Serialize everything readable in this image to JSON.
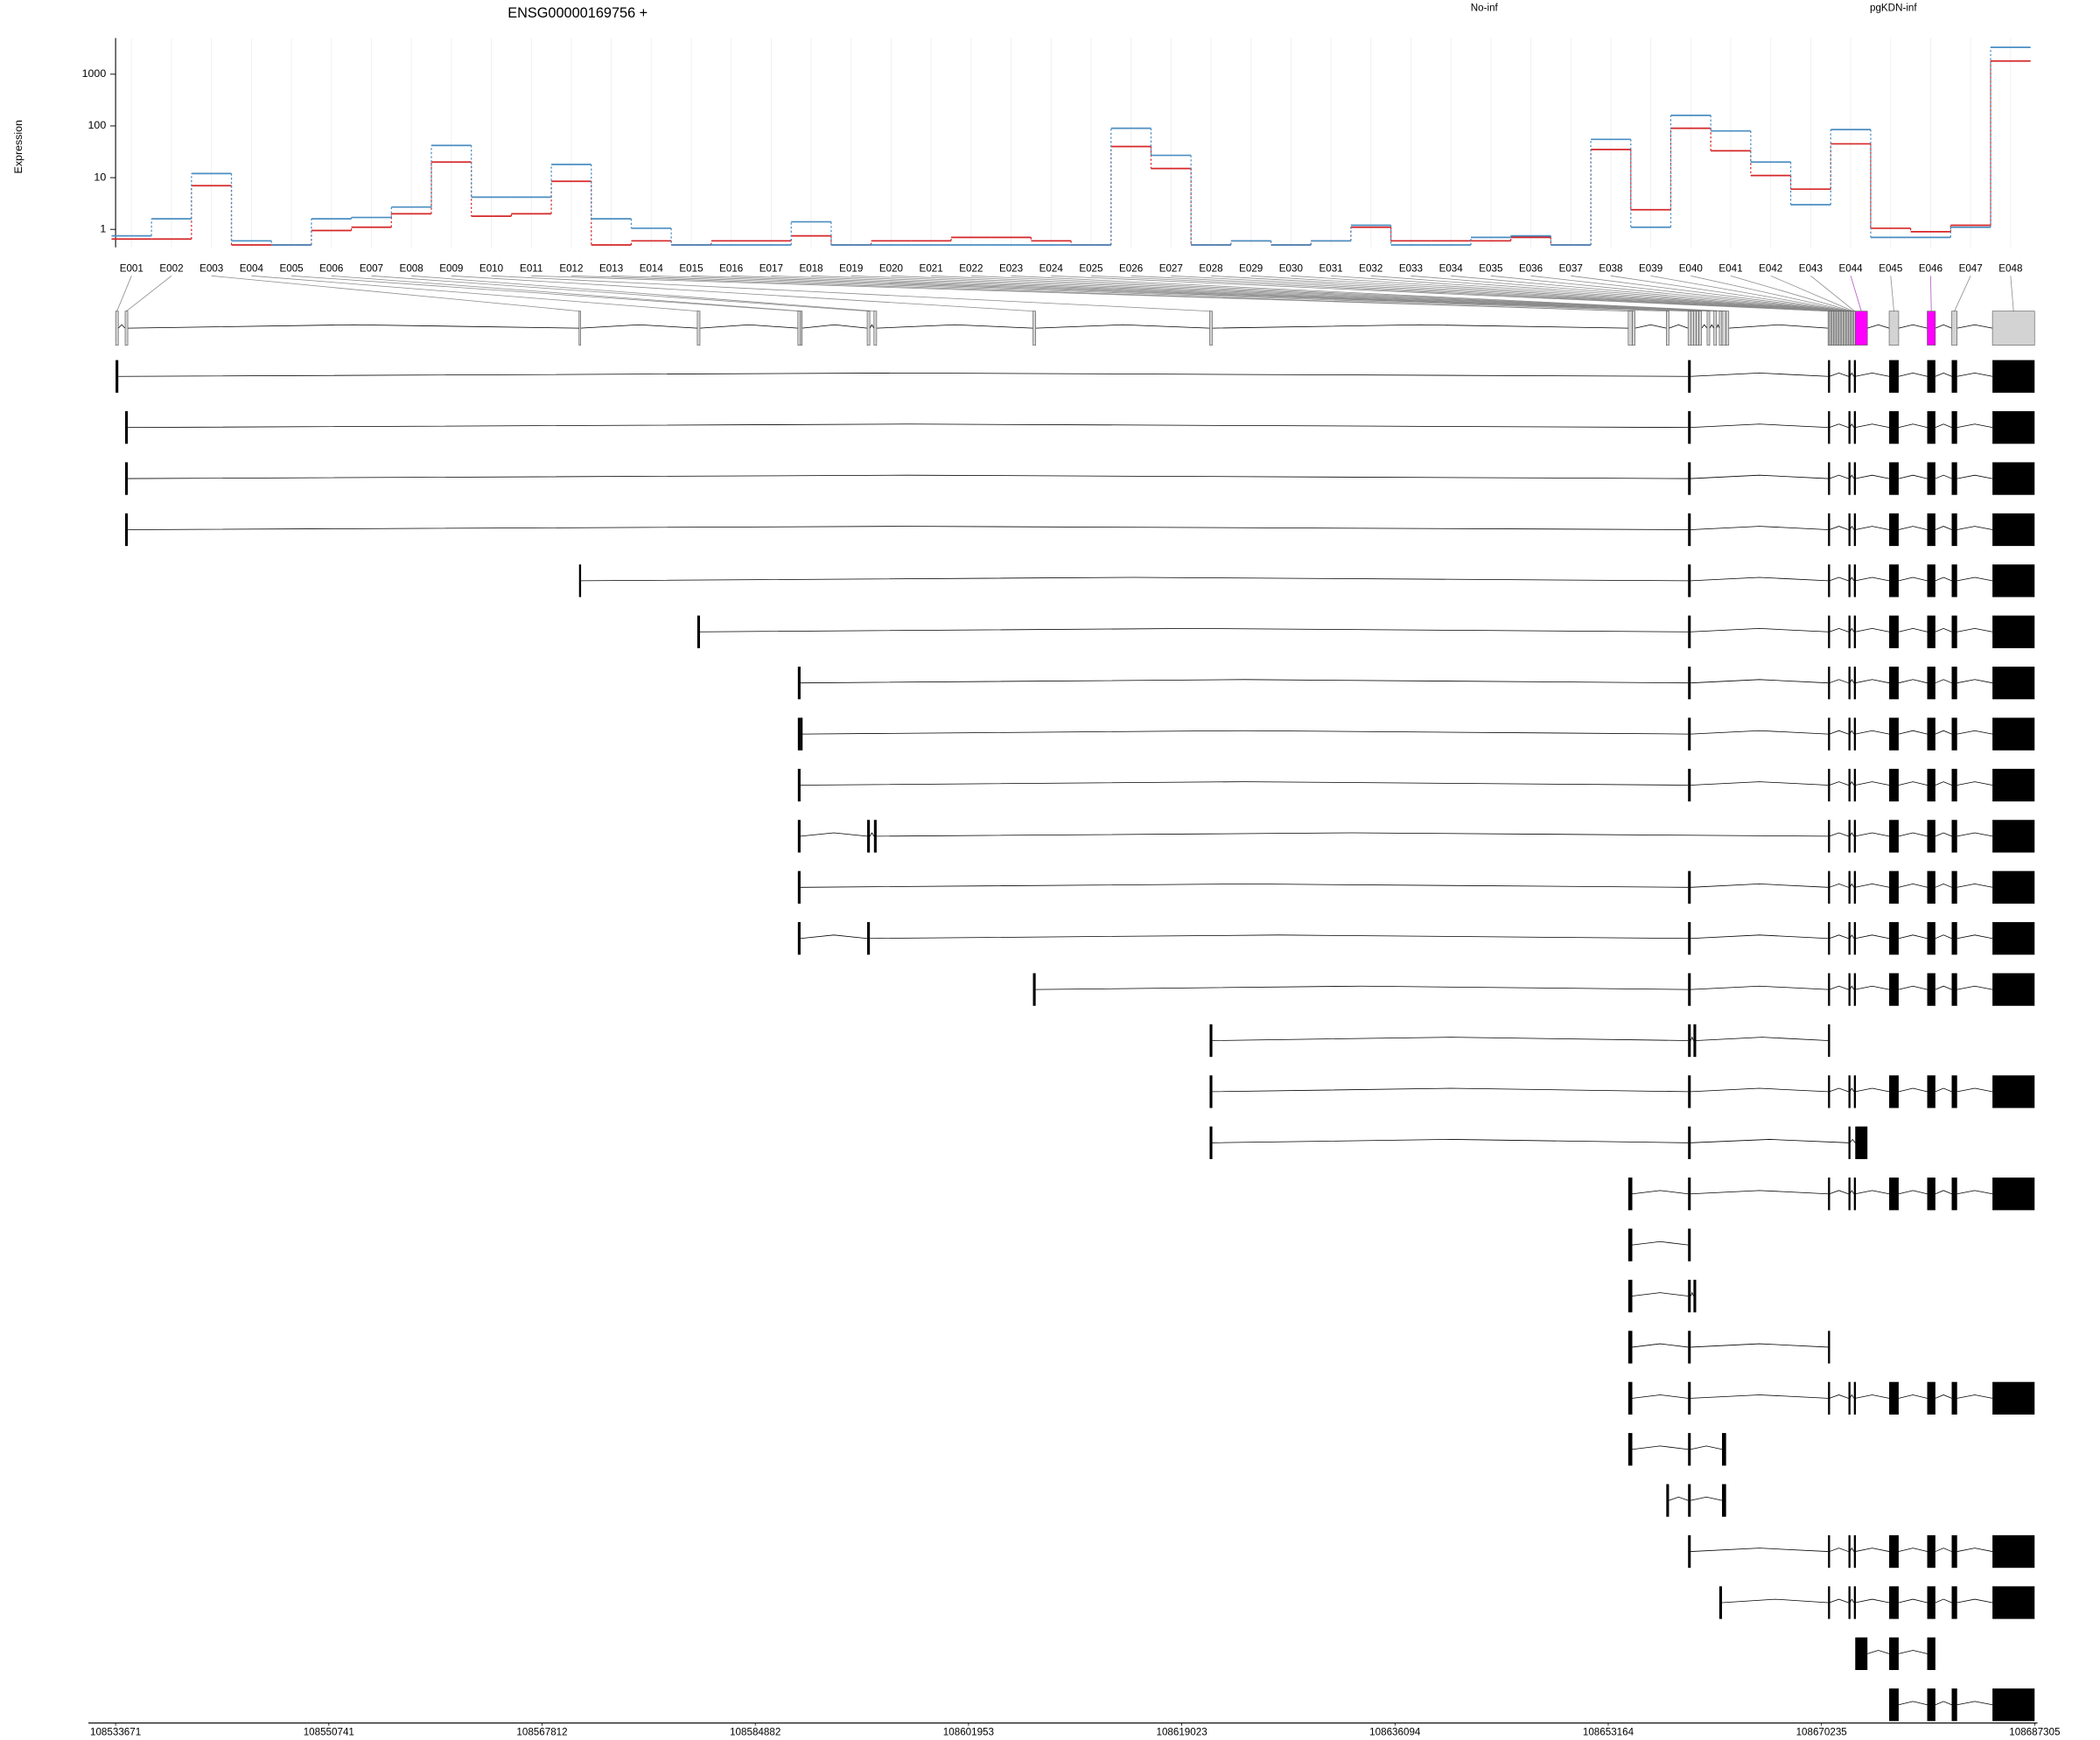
{
  "chart_data": {
    "type": "line",
    "title": "ENSG00000169756 +",
    "ylabel": "Expression",
    "categories": [
      "E001",
      "E002",
      "E003",
      "E004",
      "E005",
      "E006",
      "E007",
      "E008",
      "E009",
      "E010",
      "E011",
      "E012",
      "E013",
      "E014",
      "E015",
      "E016",
      "E017",
      "E018",
      "E019",
      "E020",
      "E021",
      "E022",
      "E023",
      "E024",
      "E025",
      "E026",
      "E027",
      "E028",
      "E029",
      "E030",
      "E031",
      "E032",
      "E033",
      "E034",
      "E035",
      "E036",
      "E037",
      "E038",
      "E039",
      "E040",
      "E041",
      "E042",
      "E043",
      "E044",
      "E045",
      "E046",
      "E047",
      "E048"
    ],
    "series": [
      {
        "name": "No-inf",
        "color": "#d62728",
        "values": [
          0.65,
          0.65,
          7,
          0.5,
          0.5,
          0.95,
          1.1,
          2.0,
          20,
          1.8,
          2.0,
          8.5,
          0.5,
          0.6,
          0.5,
          0.6,
          0.6,
          0.75,
          0.5,
          0.6,
          0.6,
          0.7,
          0.7,
          0.6,
          0.5,
          40,
          15,
          0.5,
          0.6,
          0.5,
          0.6,
          1.1,
          0.6,
          0.6,
          0.6,
          0.7,
          0.5,
          35,
          2.4,
          90,
          33,
          11,
          6,
          45,
          1.05,
          0.9,
          1.2,
          1800
        ]
      },
      {
        "name": "pgKDN-inf",
        "color": "#4a8ec2",
        "values": [
          0.75,
          1.6,
          12,
          0.6,
          0.5,
          1.6,
          1.7,
          2.7,
          42,
          4.2,
          4.2,
          18,
          1.6,
          1.05,
          0.5,
          0.5,
          0.5,
          1.4,
          0.5,
          0.5,
          0.5,
          0.5,
          0.5,
          0.5,
          0.5,
          90,
          27,
          0.5,
          0.6,
          0.5,
          0.6,
          1.2,
          0.5,
          0.5,
          0.7,
          0.75,
          0.5,
          55,
          1.1,
          160,
          80,
          20,
          3,
          85,
          0.7,
          0.7,
          1.1,
          3300
        ]
      }
    ],
    "ylim": [
      0.45,
      5000
    ],
    "yticks": [
      1,
      10,
      100,
      1000
    ],
    "log": true,
    "grid": true
  },
  "gene_model": {
    "exon_ranges": [
      [
        108533671,
        108533889
      ],
      [
        108534433,
        108534650
      ],
      [
        108570772,
        108570881
      ],
      [
        108580237,
        108580455
      ],
      [
        108588289,
        108588506
      ],
      [
        108588506,
        108588615
      ],
      [
        108593837,
        108594055
      ],
      [
        108594381,
        108594599
      ],
      [
        108607111,
        108607329
      ],
      [
        108621255,
        108621473
      ],
      [
        108654765,
        108655092
      ],
      [
        108655092,
        108655309
      ],
      [
        108657812,
        108658029
      ],
      [
        108659553,
        108659770
      ],
      [
        108659770,
        108659988
      ],
      [
        108659988,
        108660205
      ],
      [
        108660205,
        108660423
      ],
      [
        108660423,
        108660641
      ],
      [
        108661076,
        108661293
      ],
      [
        108661620,
        108661837
      ],
      [
        108662055,
        108662273
      ],
      [
        108662273,
        108662599
      ],
      [
        108662599,
        108662817
      ],
      [
        108670759,
        108670868
      ],
      [
        108670868,
        108670977
      ],
      [
        108670977,
        108671086
      ],
      [
        108671086,
        108671195
      ],
      [
        108671195,
        108671304
      ],
      [
        108671304,
        108671413
      ],
      [
        108671413,
        108671522
      ],
      [
        108671522,
        108671631
      ],
      [
        108671631,
        108671740
      ],
      [
        108671740,
        108671849
      ],
      [
        108671849,
        108671958
      ],
      [
        108671958,
        108672067
      ],
      [
        108672067,
        108672176
      ],
      [
        108672176,
        108672285
      ],
      [
        108672285,
        108672394
      ],
      [
        108672394,
        108672503
      ],
      [
        108672503,
        108672612
      ],
      [
        108672612,
        108672721
      ],
      [
        108672721,
        108672830
      ],
      [
        108672830,
        108672939
      ],
      [
        108672939,
        108673914
      ],
      [
        108675655,
        108676417
      ],
      [
        108678701,
        108679354
      ],
      [
        108680660,
        108681095
      ],
      [
        108683924,
        108687297
      ]
    ],
    "highlighted_exons": [
      "E044",
      "E046"
    ],
    "transcripts": [
      [
        0,
        13,
        23,
        38,
        42,
        44,
        45,
        46,
        47
      ],
      [
        1,
        13,
        23,
        38,
        42,
        44,
        45,
        46,
        47
      ],
      [
        1,
        13,
        23,
        38,
        42,
        44,
        45,
        46,
        47
      ],
      [
        1,
        13,
        23,
        38,
        42,
        44,
        45,
        46,
        47
      ],
      [
        2,
        13,
        23,
        38,
        42,
        44,
        45,
        46,
        47
      ],
      [
        3,
        13,
        23,
        38,
        42,
        44,
        45,
        46,
        47
      ],
      [
        4,
        13,
        23,
        38,
        42,
        44,
        45,
        46,
        47
      ],
      [
        4,
        5,
        13,
        23,
        38,
        42,
        44,
        45,
        46,
        47
      ],
      [
        4,
        13,
        23,
        38,
        42,
        44,
        45,
        46,
        47
      ],
      [
        4,
        6,
        7,
        23,
        38,
        42,
        44,
        45,
        46,
        47
      ],
      [
        4,
        13,
        23,
        38,
        42,
        44,
        45,
        46,
        47
      ],
      [
        4,
        6,
        13,
        23,
        38,
        42,
        44,
        45,
        46,
        47
      ],
      [
        8,
        13,
        23,
        38,
        42,
        44,
        45,
        46,
        47
      ],
      [
        9,
        13,
        15,
        23
      ],
      [
        9,
        13,
        23,
        38,
        42,
        44,
        45,
        46,
        47
      ],
      [
        9,
        13,
        38,
        43
      ],
      [
        10,
        13,
        23,
        38,
        42,
        44,
        45,
        46,
        47
      ],
      [
        10,
        13
      ],
      [
        10,
        13,
        15
      ],
      [
        10,
        13,
        23
      ],
      [
        10,
        13,
        23,
        38,
        42,
        44,
        45,
        46,
        47
      ],
      [
        10,
        13,
        21
      ],
      [
        12,
        13,
        21
      ],
      [
        13,
        23,
        38,
        42,
        44,
        45,
        46,
        47
      ],
      [
        20,
        23,
        38,
        42,
        44,
        45,
        46,
        47
      ],
      [
        43,
        44,
        45
      ],
      [
        44,
        45,
        46,
        47
      ]
    ],
    "xlim": [
      108533671,
      108687305
    ],
    "xticks": [
      108533671,
      108550741,
      108567812,
      108584882,
      108601953,
      108619023,
      108636094,
      108653164,
      108670235,
      108687305
    ]
  }
}
